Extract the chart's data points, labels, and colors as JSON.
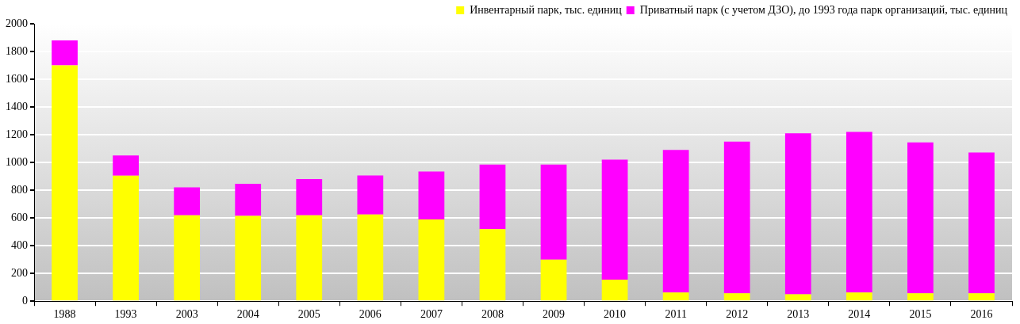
{
  "chart_data": {
    "type": "bar",
    "stacked": true,
    "categories": [
      "1988",
      "1993",
      "2003",
      "2004",
      "2005",
      "2006",
      "2007",
      "2008",
      "2009",
      "2010",
      "2011",
      "2012",
      "2013",
      "2014",
      "2015",
      "2016"
    ],
    "series": [
      {
        "name": "Инвентарный парк, тыс. единиц",
        "color": "#ffff00",
        "values": [
          1700,
          905,
          620,
          615,
          620,
          625,
          590,
          520,
          300,
          155,
          62,
          57,
          50,
          62,
          57,
          57
        ]
      },
      {
        "name": "Приватный парк (с учетом ДЗО), до 1993 года парк организаций, тыс. единиц",
        "color": "#ff00ff",
        "values": [
          180,
          145,
          200,
          232,
          260,
          282,
          345,
          465,
          685,
          865,
          1028,
          1093,
          1160,
          1158,
          1088,
          1015
        ]
      }
    ],
    "ylim": [
      0,
      2000
    ],
    "yticks": [
      0,
      200,
      400,
      600,
      800,
      1000,
      1200,
      1400,
      1600,
      1800,
      2000
    ],
    "grid": "y",
    "legend": "top right"
  }
}
